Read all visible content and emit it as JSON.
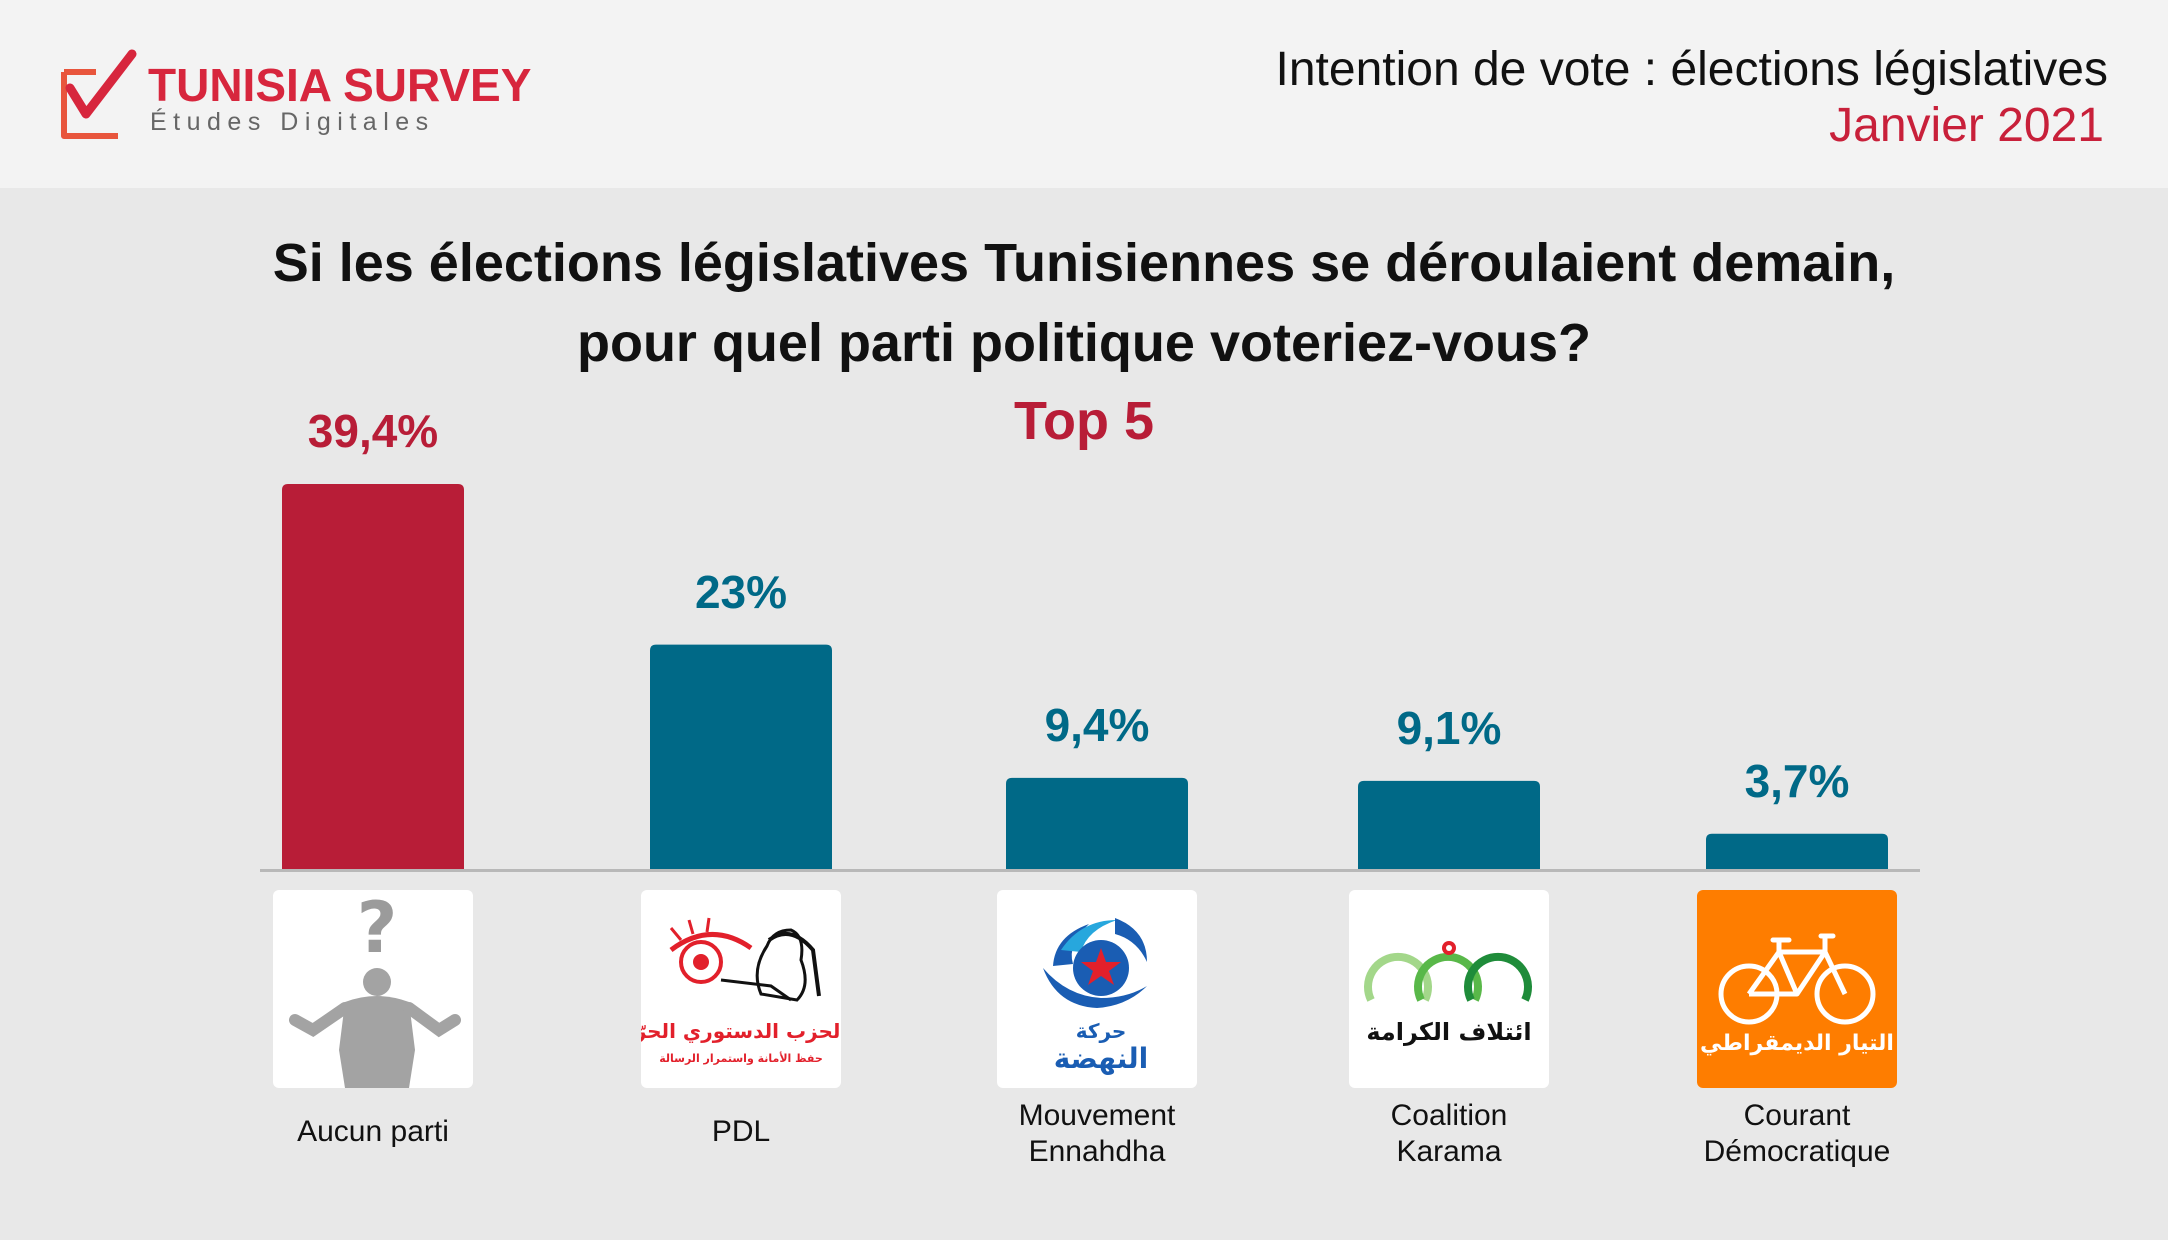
{
  "header": {
    "brand_name": "TUNISIA SURVEY",
    "brand_tagline": "Études Digitales",
    "title": "Intention de vote : élections législatives",
    "date": "Janvier 2021"
  },
  "question": {
    "line1": "Si les élections législatives Tunisiennes se déroulaient demain,",
    "line2": "pour quel parti politique voteriez-vous?",
    "subtitle": "Top 5"
  },
  "parties": [
    {
      "name": "Aucun parti",
      "logo_icon": "undecided-person-icon"
    },
    {
      "name": "PDL",
      "logo_icon": "pdl-logo-icon",
      "logo_text": [
        "الحزب الدستوري الحرّ",
        "حفظ الأمانة واستمرار الرسالة"
      ]
    },
    {
      "name": "Mouvement\nEnnahdha",
      "logo_icon": "ennahdha-logo-icon",
      "logo_text": [
        "حركة",
        "النهضة"
      ]
    },
    {
      "name": "Coalition\nKarama",
      "logo_icon": "karama-logo-icon",
      "logo_text": [
        "ائتلاف الكرامة"
      ]
    },
    {
      "name": "Courant\nDémocratique",
      "logo_icon": "bicycle-logo-icon",
      "logo_text": [
        "التيار الديمقراطي"
      ]
    }
  ],
  "colors": {
    "highlight": "#b81d37",
    "bar": "#006987",
    "brand_red": "#d7263d",
    "cd_orange": "#fe7d00"
  },
  "chart_data": {
    "type": "bar",
    "title": "Si les élections législatives Tunisiennes se déroulaient demain, pour quel parti politique voteriez-vous?",
    "subtitle": "Top 5",
    "categories": [
      "Aucun parti",
      "PDL",
      "Mouvement Ennahdha",
      "Coalition Karama",
      "Courant Démocratique"
    ],
    "values": [
      39.4,
      23,
      9.4,
      9.1,
      3.7
    ],
    "value_labels": [
      "39,4%",
      "23%",
      "9,4%",
      "9,1%",
      "3,7%"
    ],
    "unit": "%",
    "ylim": [
      0,
      39.4
    ],
    "highlight_index": 0,
    "grid": false,
    "legend": "none"
  }
}
